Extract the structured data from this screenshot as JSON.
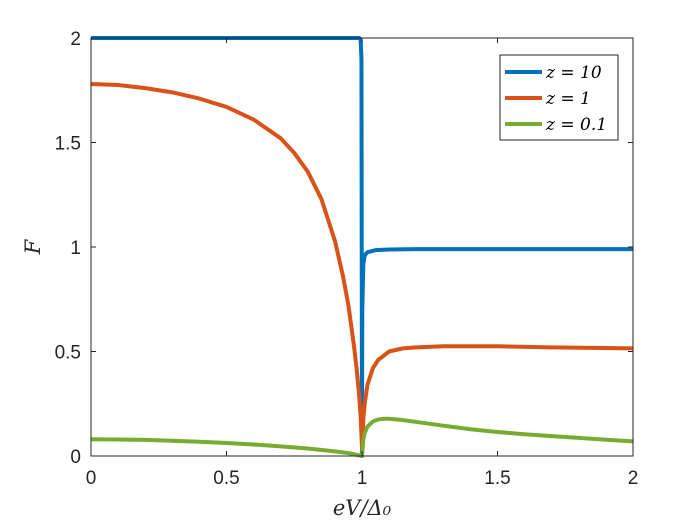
{
  "chart_data": {
    "type": "line",
    "xlabel": "eV/Δ₀",
    "ylabel": "F",
    "xlim": [
      0,
      2
    ],
    "ylim": [
      0,
      2
    ],
    "xticks": [
      0,
      0.5,
      1,
      1.5,
      2
    ],
    "xtick_labels": [
      "0",
      "0.5",
      "1",
      "1.5",
      "2"
    ],
    "yticks": [
      0,
      0.5,
      1,
      1.5,
      2
    ],
    "ytick_labels": [
      "0",
      "0.5",
      "1",
      "1.5",
      "2"
    ],
    "grid": false,
    "legend_position": "top-right",
    "series": [
      {
        "name": "z = 10",
        "color": "#0072BD",
        "x": [
          0,
          0.2,
          0.4,
          0.6,
          0.8,
          0.9,
          0.95,
          0.99,
          0.995,
          0.998,
          1.0,
          1.001,
          1.005,
          1.01,
          1.02,
          1.05,
          1.1,
          1.2,
          1.5,
          2.0
        ],
        "y": [
          2.0,
          2.0,
          2.0,
          2.0,
          2.0,
          2.0,
          2.0,
          2.0,
          1.99,
          1.9,
          0.0,
          0.7,
          0.92,
          0.96,
          0.975,
          0.985,
          0.988,
          0.99,
          0.99,
          0.99
        ]
      },
      {
        "name": "z = 1",
        "color": "#D95319",
        "x": [
          0,
          0.1,
          0.2,
          0.3,
          0.4,
          0.5,
          0.6,
          0.7,
          0.75,
          0.8,
          0.85,
          0.9,
          0.93,
          0.95,
          0.97,
          0.98,
          0.99,
          0.995,
          1.0,
          1.005,
          1.01,
          1.02,
          1.04,
          1.06,
          1.1,
          1.15,
          1.2,
          1.3,
          1.5,
          1.7,
          2.0
        ],
        "y": [
          1.78,
          1.775,
          1.76,
          1.74,
          1.71,
          1.67,
          1.61,
          1.52,
          1.45,
          1.36,
          1.23,
          1.03,
          0.86,
          0.72,
          0.53,
          0.42,
          0.28,
          0.19,
          0.04,
          0.18,
          0.25,
          0.34,
          0.42,
          0.46,
          0.5,
          0.515,
          0.52,
          0.525,
          0.525,
          0.52,
          0.515
        ]
      },
      {
        "name": "z = 0.1",
        "color": "#77AC30",
        "x": [
          0,
          0.1,
          0.2,
          0.3,
          0.4,
          0.5,
          0.6,
          0.7,
          0.8,
          0.9,
          0.95,
          1.0,
          1.005,
          1.01,
          1.02,
          1.04,
          1.06,
          1.08,
          1.1,
          1.15,
          1.2,
          1.3,
          1.4,
          1.5,
          1.6,
          1.7,
          1.8,
          1.9,
          2.0
        ],
        "y": [
          0.08,
          0.079,
          0.077,
          0.073,
          0.068,
          0.062,
          0.055,
          0.046,
          0.036,
          0.022,
          0.014,
          0.0,
          0.08,
          0.11,
          0.14,
          0.165,
          0.175,
          0.178,
          0.178,
          0.172,
          0.163,
          0.145,
          0.128,
          0.115,
          0.104,
          0.095,
          0.087,
          0.078,
          0.07
        ]
      }
    ]
  }
}
